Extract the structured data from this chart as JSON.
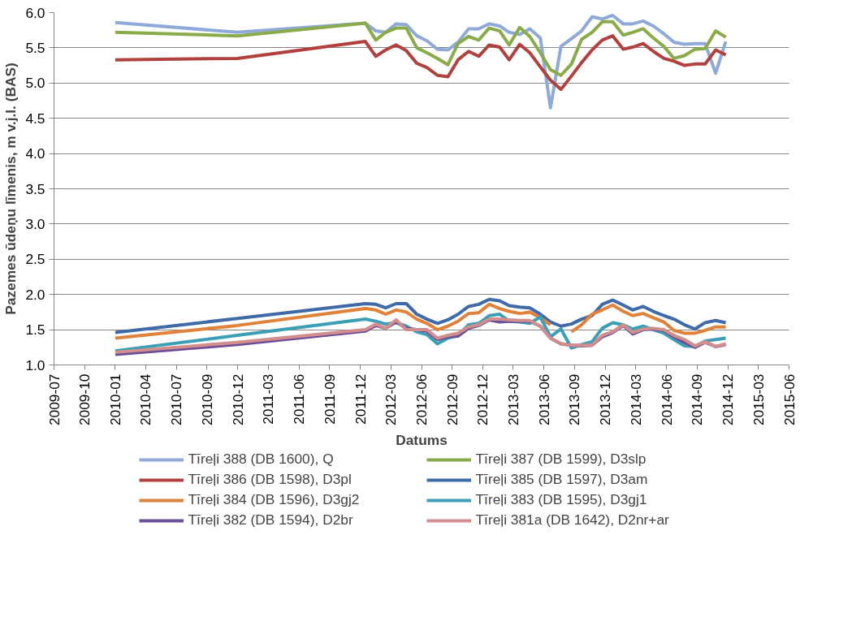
{
  "chart_data": {
    "type": "line",
    "xlabel": "Datums",
    "ylabel": "Pazemes ūdeņu līmenis, m v.j.l. (BAS)",
    "x": [
      "2010-01-01",
      "2010-12-28",
      "2012-01-10",
      "2012-02-10",
      "2012-03-10",
      "2012-04-10",
      "2012-05-10",
      "2012-06-10",
      "2012-07-10",
      "2012-08-10",
      "2012-09-10",
      "2012-10-10",
      "2012-11-10",
      "2012-12-10",
      "2013-01-10",
      "2013-02-10",
      "2013-03-10",
      "2013-04-10",
      "2013-05-10",
      "2013-06-10",
      "2013-07-10",
      "2013-08-10",
      "2013-09-10",
      "2013-10-10",
      "2013-11-10",
      "2013-12-10",
      "2014-01-10",
      "2014-02-10",
      "2014-03-10",
      "2014-04-10",
      "2014-05-10",
      "2014-06-10",
      "2014-07-10",
      "2014-08-10",
      "2014-09-10",
      "2014-10-10",
      "2014-11-10",
      "2014-12-10"
    ],
    "series": [
      {
        "name": "Tīreļi 388 (DB 1600), Q",
        "color": "#8faad8",
        "values": [
          5.86,
          5.72,
          5.85,
          5.74,
          5.72,
          5.84,
          5.83,
          5.67,
          5.6,
          5.48,
          5.47,
          5.58,
          5.77,
          5.77,
          5.84,
          5.81,
          5.72,
          5.69,
          5.77,
          5.64,
          4.65,
          5.52,
          5.63,
          5.74,
          5.94,
          5.91,
          5.96,
          5.84,
          5.84,
          5.88,
          5.81,
          5.7,
          5.58,
          5.55,
          5.56,
          5.56,
          5.14,
          5.59
        ]
      },
      {
        "name": "Tīreļi 387 (DB 1599), D3slp",
        "color": "#8aab4a",
        "values": [
          5.72,
          5.67,
          5.85,
          5.61,
          5.72,
          5.78,
          5.78,
          5.5,
          5.43,
          5.35,
          5.26,
          5.56,
          5.66,
          5.61,
          5.78,
          5.74,
          5.54,
          5.79,
          5.66,
          5.43,
          5.19,
          5.11,
          5.27,
          5.62,
          5.72,
          5.87,
          5.87,
          5.68,
          5.72,
          5.77,
          5.64,
          5.52,
          5.35,
          5.39,
          5.48,
          5.49,
          5.74,
          5.65
        ]
      },
      {
        "name": "Tīreļi 386 (DB 1598), D3pl",
        "color": "#b0413e",
        "values": [
          5.33,
          5.35,
          5.59,
          5.38,
          5.47,
          5.54,
          5.46,
          5.28,
          5.22,
          5.11,
          5.09,
          5.33,
          5.45,
          5.38,
          5.54,
          5.51,
          5.33,
          5.55,
          5.43,
          5.23,
          5.04,
          4.91,
          5.1,
          5.29,
          5.47,
          5.61,
          5.67,
          5.48,
          5.51,
          5.56,
          5.45,
          5.35,
          5.31,
          5.25,
          5.27,
          5.27,
          5.47,
          5.4
        ]
      },
      {
        "name": "Tīreļi 385 (DB 1597), D3am",
        "color": "#3e6aa8",
        "values": [
          1.46,
          1.66,
          1.87,
          1.86,
          1.81,
          1.87,
          1.87,
          1.72,
          1.65,
          1.59,
          1.64,
          1.72,
          1.83,
          1.86,
          1.93,
          1.91,
          1.84,
          1.82,
          1.81,
          1.72,
          1.61,
          1.55,
          1.58,
          1.65,
          1.7,
          1.86,
          1.92,
          1.85,
          1.78,
          1.83,
          1.76,
          1.7,
          1.65,
          1.57,
          1.51,
          1.6,
          1.63,
          1.6
        ]
      },
      {
        "name": "Tīreļi 384 (DB 1596), D3gj2",
        "color": "#e0823a",
        "values": [
          1.38,
          1.56,
          1.8,
          1.78,
          1.72,
          1.78,
          1.75,
          1.65,
          1.59,
          1.5,
          1.55,
          1.62,
          1.73,
          1.74,
          1.86,
          1.8,
          1.76,
          1.73,
          1.75,
          1.67,
          1.57,
          null,
          1.47,
          1.57,
          1.72,
          1.78,
          1.85,
          1.76,
          1.7,
          1.73,
          1.67,
          1.61,
          1.49,
          1.45,
          1.45,
          1.49,
          1.54,
          1.54
        ]
      },
      {
        "name": "Tīreļi 383 (DB 1595), D3gj1",
        "color": "#3d9fb6",
        "values": [
          1.2,
          1.42,
          1.65,
          1.62,
          1.58,
          1.6,
          1.55,
          1.47,
          1.43,
          1.3,
          1.38,
          1.42,
          1.57,
          1.59,
          1.7,
          1.72,
          1.62,
          1.61,
          1.59,
          1.68,
          1.4,
          1.51,
          1.24,
          1.29,
          1.33,
          1.52,
          1.6,
          1.57,
          1.51,
          1.55,
          1.5,
          1.45,
          1.36,
          1.27,
          1.26,
          1.34,
          1.36,
          1.38
        ]
      },
      {
        "name": "Tīreļi 382 (DB 1594), D2br",
        "color": "#6b4e98",
        "values": [
          1.15,
          1.29,
          1.48,
          1.56,
          1.52,
          1.61,
          1.52,
          1.5,
          1.48,
          1.36,
          1.4,
          1.41,
          1.52,
          1.56,
          1.64,
          1.61,
          1.62,
          1.62,
          1.62,
          1.55,
          1.38,
          1.3,
          1.28,
          1.27,
          1.28,
          1.4,
          1.46,
          1.56,
          1.44,
          1.5,
          1.51,
          1.49,
          1.4,
          1.32,
          1.25,
          1.32,
          1.26,
          1.29
        ]
      },
      {
        "name": "Tīreļi 381a (DB 1642), D2nr+ar",
        "color": "#d28e8d",
        "values": [
          1.18,
          1.32,
          1.5,
          1.58,
          1.52,
          1.64,
          1.5,
          1.5,
          1.5,
          1.38,
          1.42,
          1.45,
          1.54,
          1.57,
          1.65,
          1.65,
          1.64,
          1.63,
          1.63,
          1.55,
          1.38,
          1.3,
          1.28,
          1.28,
          1.28,
          1.42,
          1.47,
          1.57,
          1.46,
          1.51,
          1.52,
          1.5,
          1.42,
          1.36,
          1.27,
          1.33,
          1.26,
          1.3
        ]
      }
    ],
    "xlim": [
      "2009-07-04",
      "2015-06-15"
    ],
    "xticks": [
      {
        "value": "2009-07-04",
        "label": "2009-07"
      },
      {
        "value": "2009-10-02",
        "label": "2009-10"
      },
      {
        "value": "2010-01-01",
        "label": "2010-01"
      },
      {
        "value": "2010-04-01",
        "label": "2010-04"
      },
      {
        "value": "2010-07-01",
        "label": "2010-07"
      },
      {
        "value": "2010-09-29",
        "label": "2010-09"
      },
      {
        "value": "2010-12-29",
        "label": "2010-12"
      },
      {
        "value": "2011-03-29",
        "label": "2011-03"
      },
      {
        "value": "2011-06-28",
        "label": "2011-06"
      },
      {
        "value": "2011-09-26",
        "label": "2011-09"
      },
      {
        "value": "2011-12-26",
        "label": "2011-12"
      },
      {
        "value": "2012-03-25",
        "label": "2012-03"
      },
      {
        "value": "2012-06-24",
        "label": "2012-06"
      },
      {
        "value": "2012-09-22",
        "label": "2012-09"
      },
      {
        "value": "2012-12-22",
        "label": "2012-12"
      },
      {
        "value": "2013-03-22",
        "label": "2013-03"
      },
      {
        "value": "2013-06-21",
        "label": "2013-06"
      },
      {
        "value": "2013-09-19",
        "label": "2013-09"
      },
      {
        "value": "2013-12-19",
        "label": "2013-12"
      },
      {
        "value": "2014-03-19",
        "label": "2014-03"
      },
      {
        "value": "2014-06-18",
        "label": "2014-06"
      },
      {
        "value": "2014-09-16",
        "label": "2014-09"
      },
      {
        "value": "2014-12-16",
        "label": "2014-12"
      },
      {
        "value": "2015-03-16",
        "label": "2015-03"
      },
      {
        "value": "2015-06-15",
        "label": "2015-06"
      }
    ],
    "ylim": [
      1.0,
      6.0
    ],
    "yticks": [
      {
        "value": 1.0,
        "label": "1.0"
      },
      {
        "value": 1.5,
        "label": "1.5"
      },
      {
        "value": 2.0,
        "label": "2.0"
      },
      {
        "value": 2.5,
        "label": "2.5"
      },
      {
        "value": 3.0,
        "label": "3.0"
      },
      {
        "value": 3.5,
        "label": "3.5"
      },
      {
        "value": 4.0,
        "label": "4.0"
      },
      {
        "value": 4.5,
        "label": "4.5"
      },
      {
        "value": 5.0,
        "label": "5.0"
      },
      {
        "value": 5.5,
        "label": "5.5"
      },
      {
        "value": 6.0,
        "label": "6.0"
      }
    ],
    "grid": "y",
    "legend": "bottom",
    "line_style": "solid"
  }
}
